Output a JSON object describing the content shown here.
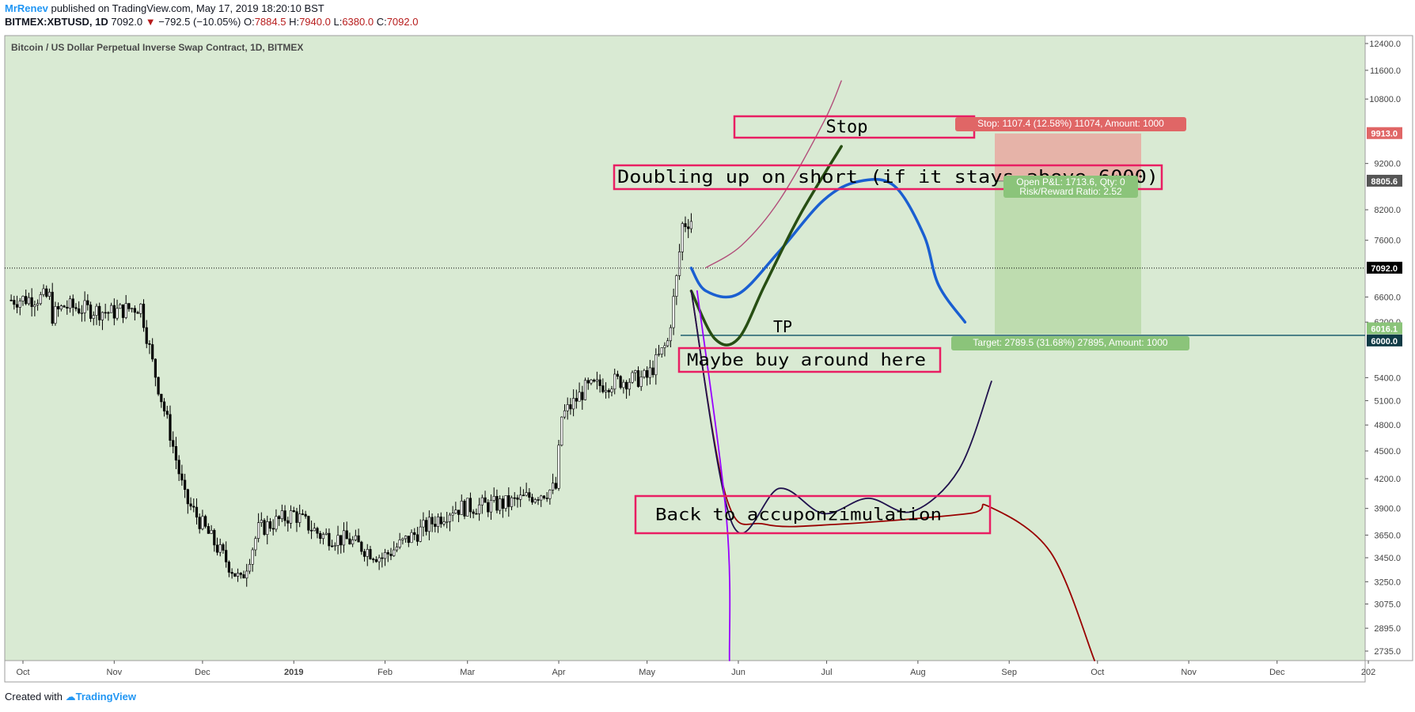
{
  "header": {
    "author": "MrRenev",
    "published": "published on TradingView.com, May 17, 2019 18:20:10 BST",
    "symbol": "BITMEX:XBTUSD, 1D",
    "last": "7092.0",
    "arrow": "▼",
    "change": "−792.5 (−10.05%)",
    "o_label": "O:",
    "o_value": "7884.5",
    "h_label": "H:",
    "h_value": "7940.0",
    "l_label": "L:",
    "l_value": "6380.0",
    "c_label": "C:",
    "c_value": "7092.0"
  },
  "footer": {
    "created_with": "Created with",
    "brand": "TradingView"
  },
  "colors": {
    "pane_bg": "#d9ead3",
    "up": "#ffffff",
    "down": "#000000",
    "box_border": "#e91e63",
    "stop_zone": "#e8a9a0",
    "target_zone": "#b9d9a8",
    "stop_label": "#e06666",
    "target_label": "#8bc47a",
    "blue_path": "#1a5fd1",
    "green_path": "#274e13",
    "pink_path": "#b14e7a",
    "red_path": "#990000",
    "navy_path": "#20124d",
    "purple_path": "#9900ff"
  },
  "chart_data": {
    "type": "candlestick",
    "title": "Bitcoin / US Dollar Perpetual Inverse Swap Contract, 1D, BITMEX",
    "x_ticks": [
      "Oct",
      "Nov",
      "Dec",
      "2019",
      "Feb",
      "Mar",
      "Apr",
      "May",
      "Jun",
      "Jul",
      "Aug",
      "Sep",
      "Oct",
      "Nov",
      "Dec",
      "202"
    ],
    "y_ticks": [
      "12400.0",
      "11600.0",
      "10800.0",
      "9913.0",
      "9200.0",
      "8805.6",
      "8200.0",
      "7600.0",
      "7092.0",
      "6600.0",
      "6200.0",
      "6016.1",
      "6000.0",
      "5400.0",
      "5100.0",
      "4800.0",
      "4500.0",
      "4200.0",
      "3900.0",
      "3650.0",
      "3450.0",
      "3250.0",
      "3075.0",
      "2895.0",
      "2735.0"
    ],
    "y_scale": "log",
    "ylim": [
      2600,
      12800
    ],
    "last_price": 7092.0,
    "stop_price": 9913.0,
    "entry_price": 8805.6,
    "target_price": 6016.1,
    "tp_line": 6000.0,
    "price_path": [
      [
        "2018-09-27",
        6550
      ],
      [
        "2018-10-10",
        6600
      ],
      [
        "2018-10-11",
        6300
      ],
      [
        "2018-10-15",
        6450
      ],
      [
        "2018-10-31",
        6350
      ],
      [
        "2018-11-10",
        6450
      ],
      [
        "2018-11-14",
        5600
      ],
      [
        "2018-11-20",
        4700
      ],
      [
        "2018-11-25",
        4000
      ],
      [
        "2018-12-07",
        3500
      ],
      [
        "2018-12-14",
        3250
      ],
      [
        "2018-12-20",
        3700
      ],
      [
        "2019-01-01",
        3850
      ],
      [
        "2019-01-10",
        3650
      ],
      [
        "2019-01-20",
        3600
      ],
      [
        "2019-01-31",
        3450
      ],
      [
        "2019-02-08",
        3600
      ],
      [
        "2019-02-24",
        3900
      ],
      [
        "2019-03-15",
        3950
      ],
      [
        "2019-03-31",
        4100
      ],
      [
        "2019-04-02",
        4900
      ],
      [
        "2019-04-10",
        5250
      ],
      [
        "2019-04-20",
        5350
      ],
      [
        "2019-05-01",
        5400
      ],
      [
        "2019-05-08",
        5900
      ],
      [
        "2019-05-11",
        6900
      ],
      [
        "2019-05-13",
        7900
      ],
      [
        "2019-05-16",
        8000
      ],
      [
        "2019-05-17",
        7092
      ]
    ],
    "annotations": [
      {
        "text": "Stop"
      },
      {
        "text": "Doubling up on short (if it stays above 6000)"
      },
      {
        "text": "TP"
      },
      {
        "text": "Maybe buy around here"
      },
      {
        "text": "Back to accuponzimulation"
      }
    ],
    "position_labels": {
      "stop": "Stop: 1107.4 (12.58%) 11074, Amount: 1000",
      "pnl": "Open P&L: 1713.6, Qty: 0",
      "rr": "Risk/Reward Ratio: 2.52",
      "target": "Target: 2789.5 (31.68%) 27895, Amount: 1000"
    },
    "projection_paths": [
      {
        "name": "blue",
        "points": [
          [
            "2019-05-16",
            7092
          ],
          [
            "2019-05-21",
            6700
          ],
          [
            "2019-06-01",
            6650
          ],
          [
            "2019-06-15",
            7400
          ],
          [
            "2019-06-30",
            8400
          ],
          [
            "2019-07-12",
            8800
          ],
          [
            "2019-07-24",
            8700
          ],
          [
            "2019-08-03",
            7700
          ],
          [
            "2019-08-08",
            6800
          ],
          [
            "2019-08-17",
            6200
          ]
        ]
      },
      {
        "name": "green",
        "points": [
          [
            "2019-05-16",
            6700
          ],
          [
            "2019-05-24",
            5950
          ],
          [
            "2019-06-01",
            5950
          ],
          [
            "2019-06-10",
            6800
          ],
          [
            "2019-06-22",
            8100
          ],
          [
            "2019-07-06",
            9600
          ]
        ]
      },
      {
        "name": "pink",
        "points": [
          [
            "2019-05-21",
            7100
          ],
          [
            "2019-06-02",
            7500
          ],
          [
            "2019-06-15",
            8400
          ],
          [
            "2019-06-30",
            10200
          ],
          [
            "2019-07-06",
            11300
          ]
        ]
      },
      {
        "name": "red",
        "points": [
          [
            "2019-05-16",
            6700
          ],
          [
            "2019-05-28",
            4000
          ],
          [
            "2019-06-10",
            3750
          ],
          [
            "2019-07-05",
            3750
          ],
          [
            "2019-08-18",
            3850
          ],
          [
            "2019-08-25",
            3920
          ],
          [
            "2019-09-15",
            3500
          ],
          [
            "2019-09-30",
            2650
          ]
        ]
      },
      {
        "name": "navy",
        "points": [
          [
            "2019-05-16",
            6700
          ],
          [
            "2019-05-30",
            3750
          ],
          [
            "2019-06-15",
            4100
          ],
          [
            "2019-06-30",
            3850
          ],
          [
            "2019-07-15",
            4000
          ],
          [
            "2019-07-30",
            3870
          ],
          [
            "2019-08-15",
            4300
          ],
          [
            "2019-08-26",
            5350
          ]
        ]
      },
      {
        "name": "purple",
        "points": [
          [
            "2019-05-18",
            6700
          ],
          [
            "2019-05-28",
            3800
          ],
          [
            "2019-05-29",
            2600
          ]
        ]
      }
    ]
  }
}
